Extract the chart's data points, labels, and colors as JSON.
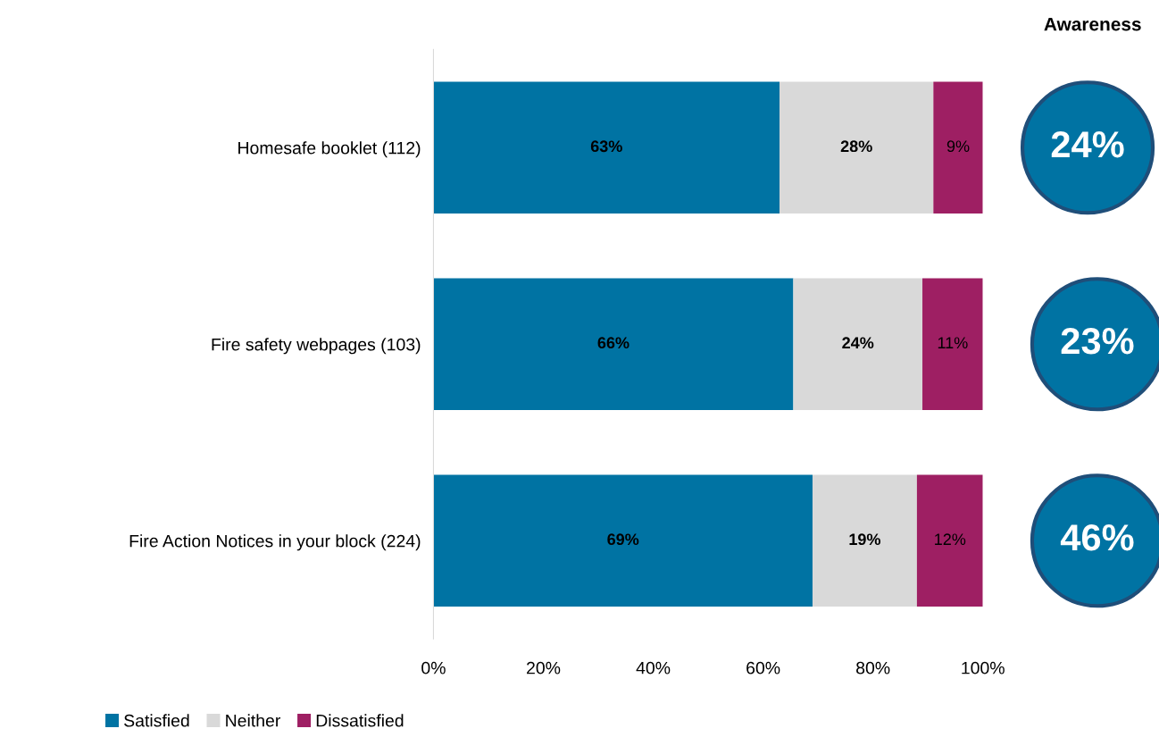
{
  "chart_data": [
    {
      "type": "bar",
      "orientation": "horizontal",
      "stacked": true,
      "categories": [
        "Homesafe booklet (112)",
        "Fire safety webpages (103)",
        "Fire Action Notices in your block (224)"
      ],
      "series": [
        {
          "name": "Satisfied",
          "color": "#0073a3",
          "values": [
            63,
            65.5,
            69
          ],
          "value_labels": [
            "63%",
            "66%",
            "69%"
          ]
        },
        {
          "name": "Neither",
          "color": "#d9d9d9",
          "values": [
            28,
            23.5,
            19
          ],
          "value_labels": [
            "28%",
            "24%",
            "19%"
          ]
        },
        {
          "name": "Dissatisfied",
          "color": "#9e1f63",
          "values": [
            9,
            11,
            12
          ],
          "value_labels": [
            "9%",
            "11%",
            "12%"
          ]
        }
      ],
      "xlim": [
        0,
        100
      ],
      "xticks": [
        {
          "value": 0,
          "label": "0%"
        },
        {
          "value": 20,
          "label": "20%"
        },
        {
          "value": 40,
          "label": "40%"
        },
        {
          "value": 60,
          "label": "60%"
        },
        {
          "value": 80,
          "label": "80%"
        },
        {
          "value": 100,
          "label": "100%"
        }
      ],
      "grid": false,
      "legend": "bottom left"
    },
    {
      "type": "other",
      "title": "Awareness",
      "annotations": [
        "24%",
        "23%",
        "46%"
      ],
      "color": "#0073a3"
    }
  ]
}
